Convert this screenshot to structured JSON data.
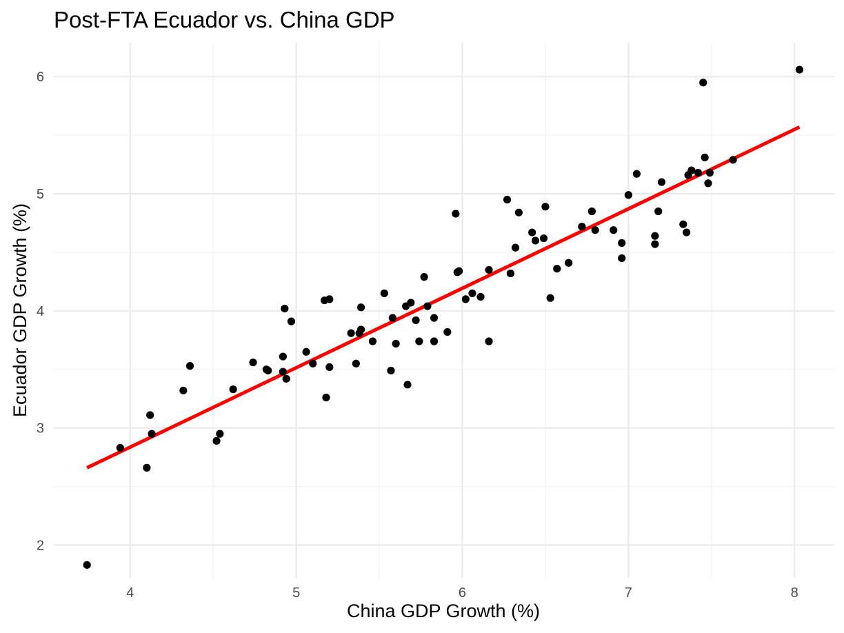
{
  "chart_data": {
    "type": "scatter",
    "title": "Post-FTA Ecuador vs. China GDP",
    "xlabel": "China GDP Growth (%)",
    "ylabel": "Ecuador GDP Growth (%)",
    "xlim": [
      3.54,
      8.24
    ],
    "ylim": [
      1.72,
      6.29
    ],
    "x_ticks": [
      4,
      5,
      6,
      7,
      8
    ],
    "y_ticks": [
      2,
      3,
      4,
      5,
      6
    ],
    "x_tick_labels": [
      "4",
      "5",
      "6",
      "7",
      "8"
    ],
    "y_tick_labels": [
      "2",
      "3",
      "4",
      "5",
      "6"
    ],
    "grid": true,
    "point_color": "#000000",
    "fit_line_color": "#ff0000",
    "series": [
      {
        "points": [
          [
            3.74,
            1.83
          ],
          [
            3.94,
            2.83
          ],
          [
            4.1,
            2.66
          ],
          [
            4.12,
            3.11
          ],
          [
            4.13,
            2.95
          ],
          [
            4.32,
            3.32
          ],
          [
            4.36,
            3.53
          ],
          [
            4.52,
            2.89
          ],
          [
            4.54,
            2.95
          ],
          [
            4.62,
            3.33
          ],
          [
            4.74,
            3.56
          ],
          [
            4.82,
            3.5
          ],
          [
            4.83,
            3.49
          ],
          [
            4.92,
            3.61
          ],
          [
            4.92,
            3.48
          ],
          [
            4.93,
            4.02
          ],
          [
            4.94,
            3.42
          ],
          [
            4.97,
            3.91
          ],
          [
            5.06,
            3.65
          ],
          [
            5.1,
            3.55
          ],
          [
            5.17,
            4.09
          ],
          [
            5.18,
            3.26
          ],
          [
            5.2,
            4.1
          ],
          [
            5.2,
            3.52
          ],
          [
            5.33,
            3.81
          ],
          [
            5.36,
            3.55
          ],
          [
            5.38,
            3.81
          ],
          [
            5.39,
            3.84
          ],
          [
            5.39,
            4.03
          ],
          [
            5.46,
            3.74
          ],
          [
            5.53,
            4.15
          ],
          [
            5.57,
            3.49
          ],
          [
            5.58,
            3.94
          ],
          [
            5.6,
            3.72
          ],
          [
            5.66,
            4.04
          ],
          [
            5.67,
            3.37
          ],
          [
            5.69,
            4.07
          ],
          [
            5.72,
            3.92
          ],
          [
            5.74,
            3.74
          ],
          [
            5.77,
            4.29
          ],
          [
            5.79,
            4.04
          ],
          [
            5.83,
            3.94
          ],
          [
            5.83,
            3.74
          ],
          [
            5.91,
            3.82
          ],
          [
            5.96,
            4.83
          ],
          [
            5.97,
            4.33
          ],
          [
            5.98,
            4.34
          ],
          [
            6.02,
            4.1
          ],
          [
            6.06,
            4.15
          ],
          [
            6.11,
            4.12
          ],
          [
            6.16,
            4.35
          ],
          [
            6.16,
            3.74
          ],
          [
            6.27,
            4.95
          ],
          [
            6.29,
            4.32
          ],
          [
            6.32,
            4.54
          ],
          [
            6.34,
            4.84
          ],
          [
            6.42,
            4.67
          ],
          [
            6.44,
            4.6
          ],
          [
            6.49,
            4.62
          ],
          [
            6.5,
            4.89
          ],
          [
            6.53,
            4.11
          ],
          [
            6.57,
            4.36
          ],
          [
            6.64,
            4.41
          ],
          [
            6.72,
            4.72
          ],
          [
            6.78,
            4.85
          ],
          [
            6.8,
            4.69
          ],
          [
            6.91,
            4.69
          ],
          [
            6.96,
            4.58
          ],
          [
            6.96,
            4.45
          ],
          [
            7.0,
            4.99
          ],
          [
            7.05,
            5.17
          ],
          [
            7.16,
            4.64
          ],
          [
            7.16,
            4.57
          ],
          [
            7.18,
            4.85
          ],
          [
            7.2,
            5.1
          ],
          [
            7.33,
            4.74
          ],
          [
            7.35,
            4.67
          ],
          [
            7.36,
            5.16
          ],
          [
            7.38,
            5.2
          ],
          [
            7.42,
            5.18
          ],
          [
            7.45,
            5.95
          ],
          [
            7.46,
            5.31
          ],
          [
            7.48,
            5.09
          ],
          [
            7.49,
            5.18
          ],
          [
            7.63,
            5.29
          ],
          [
            8.03,
            6.06
          ]
        ]
      }
    ],
    "fit_line": {
      "x": [
        3.74,
        8.03
      ],
      "y": [
        2.66,
        5.57
      ]
    }
  }
}
